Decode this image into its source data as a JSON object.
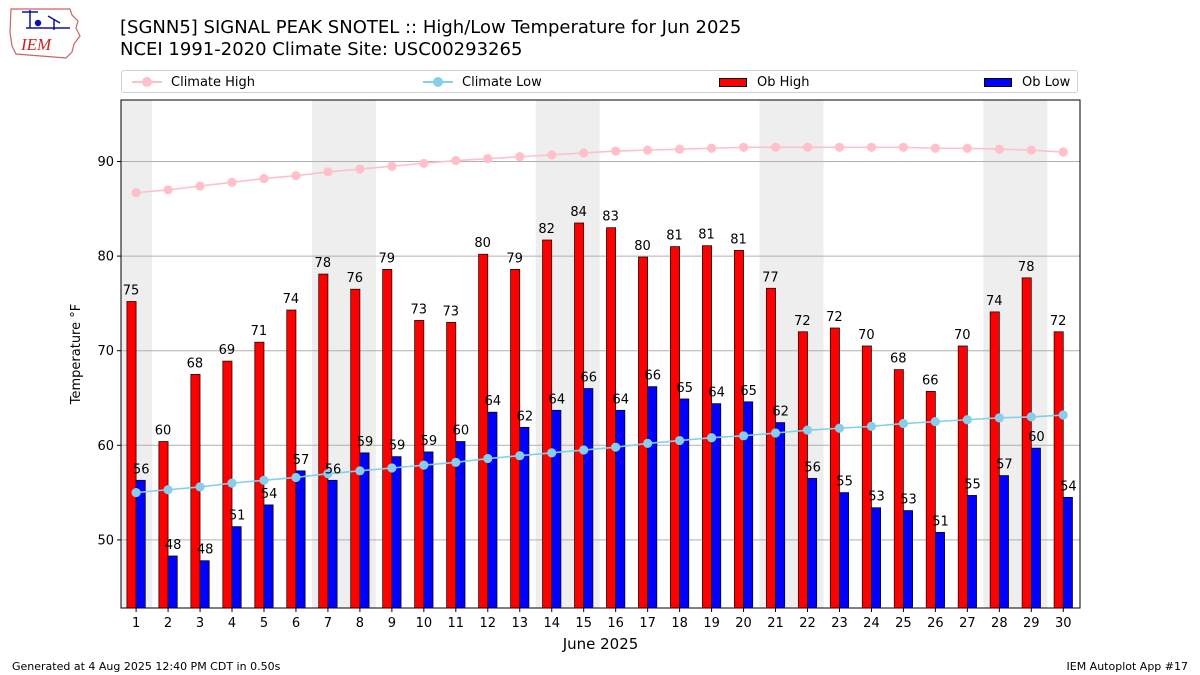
{
  "header": {
    "title_line1": "[SGNN5] SIGNAL PEAK SNOTEL :: High/Low Temperature for Jun 2025",
    "title_line2": "NCEI 1991-2020 Climate Site: USC00293265",
    "logo_text": "IEM"
  },
  "legend": {
    "climate_high": "Climate High",
    "climate_low": "Climate Low",
    "ob_high": "Ob High",
    "ob_low": "Ob Low"
  },
  "footer": {
    "generated": "Generated at 4 Aug 2025 12:40 PM CDT in 0.50s",
    "app": "IEM Autoplot App #17"
  },
  "colors": {
    "ob_high": "#ff0000",
    "ob_low": "#0000ff",
    "climate_high": "#ffc0cb",
    "climate_low": "#87ceeb",
    "weekend_band": "#eeeeee",
    "grid": "#b0b0b0"
  },
  "chart_data": {
    "type": "bar",
    "title": "[SGNN5] SIGNAL PEAK SNOTEL :: High/Low Temperature for Jun 2025",
    "xlabel": "June 2025",
    "ylabel": "Temperature °F",
    "ylim": [
      42.8,
      96.5
    ],
    "yticks": [
      50,
      60,
      70,
      80,
      90
    ],
    "categories": [
      "1",
      "2",
      "3",
      "4",
      "5",
      "6",
      "7",
      "8",
      "9",
      "10",
      "11",
      "12",
      "13",
      "14",
      "15",
      "16",
      "17",
      "18",
      "19",
      "20",
      "21",
      "22",
      "23",
      "24",
      "25",
      "26",
      "27",
      "28",
      "29",
      "30"
    ],
    "shaded_days": [
      1,
      7,
      8,
      14,
      15,
      21,
      22,
      28,
      29
    ],
    "series": [
      {
        "name": "Ob High",
        "kind": "bar",
        "values": [
          75.2,
          60.4,
          67.5,
          68.9,
          70.9,
          74.3,
          78.1,
          76.5,
          78.6,
          73.2,
          73.0,
          80.2,
          78.6,
          81.7,
          83.5,
          83.0,
          79.9,
          81.0,
          81.1,
          80.6,
          76.6,
          72.0,
          72.4,
          70.5,
          68.0,
          65.7,
          70.5,
          74.1,
          77.7,
          72.0
        ],
        "labels": [
          75,
          60,
          68,
          69,
          71,
          74,
          78,
          76,
          79,
          73,
          73,
          80,
          79,
          82,
          84,
          83,
          80,
          81,
          81,
          81,
          77,
          72,
          72,
          70,
          68,
          66,
          70,
          74,
          78,
          72
        ]
      },
      {
        "name": "Ob Low",
        "kind": "bar",
        "values": [
          56.3,
          48.3,
          47.8,
          51.4,
          53.7,
          57.3,
          56.3,
          59.2,
          58.8,
          59.3,
          60.4,
          63.5,
          61.9,
          63.7,
          66.0,
          63.7,
          66.2,
          64.9,
          64.4,
          64.6,
          62.4,
          56.5,
          55.0,
          53.4,
          53.1,
          50.8,
          54.7,
          56.8,
          59.7,
          54.5
        ],
        "labels": [
          56,
          48,
          48,
          51,
          54,
          57,
          56,
          59,
          59,
          59,
          60,
          64,
          62,
          64,
          66,
          64,
          66,
          65,
          64,
          65,
          62,
          56,
          55,
          53,
          53,
          51,
          55,
          57,
          60,
          54
        ]
      },
      {
        "name": "Climate High",
        "kind": "line",
        "values": [
          86.7,
          87.0,
          87.4,
          87.8,
          88.2,
          88.5,
          88.9,
          89.2,
          89.5,
          89.8,
          90.1,
          90.3,
          90.5,
          90.7,
          90.9,
          91.1,
          91.2,
          91.3,
          91.4,
          91.5,
          91.5,
          91.5,
          91.5,
          91.5,
          91.5,
          91.4,
          91.4,
          91.3,
          91.2,
          91.0
        ]
      },
      {
        "name": "Climate Low",
        "kind": "line",
        "values": [
          55.0,
          55.3,
          55.6,
          56.0,
          56.3,
          56.6,
          57.0,
          57.3,
          57.6,
          57.9,
          58.2,
          58.6,
          58.9,
          59.2,
          59.5,
          59.8,
          60.2,
          60.5,
          60.8,
          61.0,
          61.3,
          61.6,
          61.8,
          62.0,
          62.3,
          62.5,
          62.7,
          62.9,
          63.0,
          63.2
        ]
      }
    ]
  }
}
